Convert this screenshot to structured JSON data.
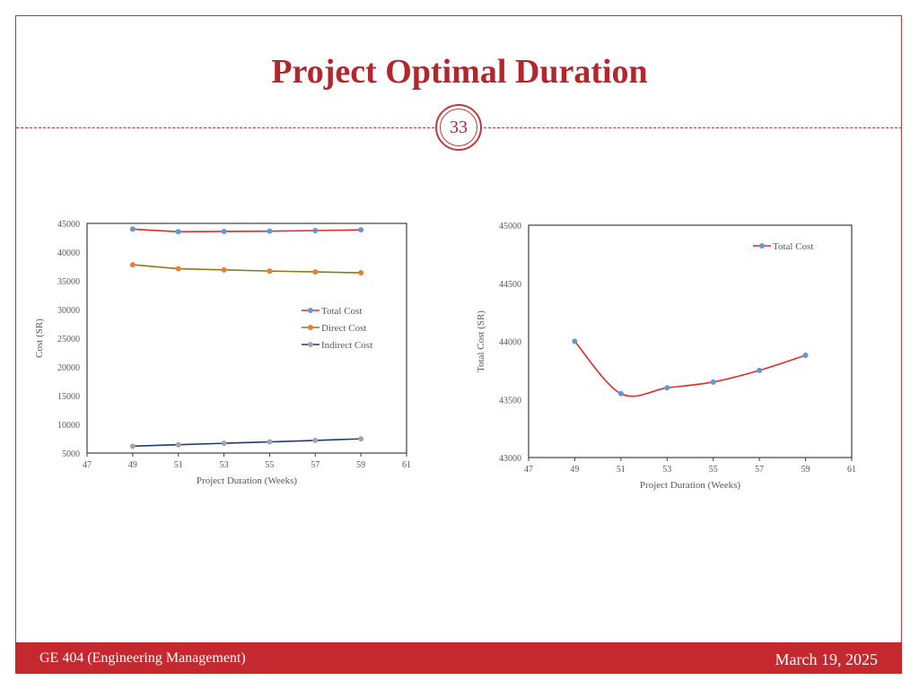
{
  "slide": {
    "title": "Project Optimal Duration",
    "page_number": "33",
    "footer_left": "GE 404 (Engineering Management)",
    "footer_right": "March 19, 2025",
    "accent_color": "#c5282e"
  },
  "chart_data": [
    {
      "type": "line",
      "xlabel": "Project Duration (Weeks)",
      "ylabel": "Cost (SR)",
      "xlim": [
        47,
        61
      ],
      "ylim": [
        5000,
        45000
      ],
      "xticks": [
        47,
        49,
        51,
        53,
        55,
        57,
        59,
        61
      ],
      "yticks": [
        5000,
        10000,
        15000,
        20000,
        25000,
        30000,
        35000,
        40000,
        45000
      ],
      "grid": false,
      "legend": "center-right",
      "x": [
        49,
        51,
        53,
        55,
        57,
        59
      ],
      "series": [
        {
          "name": "Total Cost",
          "values": [
            44000,
            43550,
            43600,
            43650,
            43750,
            43880
          ],
          "line_color": "#e8262b",
          "marker_color": "#5b9bd5"
        },
        {
          "name": "Direct Cost",
          "values": [
            37800,
            37100,
            36900,
            36700,
            36550,
            36400
          ],
          "line_color": "#8b7a1a",
          "marker_color": "#ed7d31"
        },
        {
          "name": "Indirect Cost",
          "values": [
            6200,
            6450,
            6700,
            6950,
            7200,
            7480
          ],
          "line_color": "#1f3a7a",
          "marker_color": "#a5a5a5"
        }
      ]
    },
    {
      "type": "line",
      "xlabel": "Project Duration (Weeks)",
      "ylabel": "Total Cost (SR)",
      "xlim": [
        47,
        61
      ],
      "ylim": [
        43000,
        45000
      ],
      "xticks": [
        47,
        49,
        51,
        53,
        55,
        57,
        59,
        61
      ],
      "yticks": [
        43000,
        43500,
        44000,
        44500,
        45000
      ],
      "grid": false,
      "legend": "top-right",
      "smooth": true,
      "x": [
        49,
        51,
        53,
        55,
        57,
        59
      ],
      "series": [
        {
          "name": "Total Cost",
          "values": [
            44000,
            43550,
            43600,
            43650,
            43750,
            43880
          ],
          "line_color": "#e8262b",
          "marker_color": "#5b9bd5"
        }
      ]
    }
  ]
}
